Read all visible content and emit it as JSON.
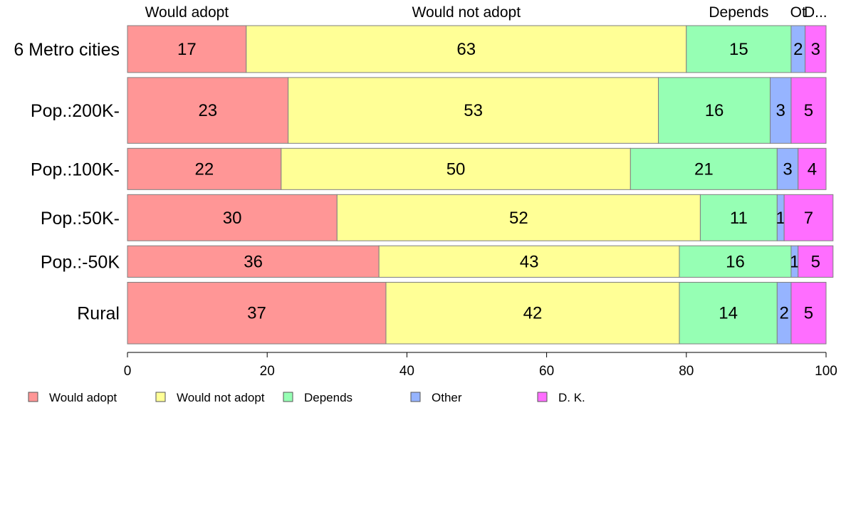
{
  "chart_data": {
    "type": "bar",
    "orientation": "horizontal",
    "stacked": true,
    "categories": [
      "6 Metro cities",
      "Pop.:200K-",
      "Pop.:100K-",
      "Pop.:50K-",
      "Pop.:-50K",
      "Rural"
    ],
    "series": [
      {
        "name": "Would adopt",
        "color": "#ff9696",
        "values": [
          17,
          23,
          22,
          30,
          36,
          37
        ]
      },
      {
        "name": "Would not adopt",
        "color": "#ffff96",
        "values": [
          63,
          53,
          50,
          52,
          43,
          42
        ]
      },
      {
        "name": "Depends",
        "color": "#96ffb4",
        "values": [
          15,
          16,
          21,
          11,
          16,
          14
        ]
      },
      {
        "name": "Other",
        "color": "#96b4ff",
        "values": [
          2,
          3,
          3,
          1,
          1,
          2
        ]
      },
      {
        "name": "D. K.",
        "color": "#ff6eff",
        "values": [
          3,
          5,
          4,
          7,
          5,
          5
        ]
      }
    ],
    "segment_labels": [
      [
        "17",
        "63",
        "15",
        "2",
        "3"
      ],
      [
        "23",
        "53",
        "16",
        "3",
        "5"
      ],
      [
        "22",
        "50",
        "21",
        "3",
        "4"
      ],
      [
        "30",
        "52",
        "11",
        "1",
        "7"
      ],
      [
        "36",
        "43",
        "16",
        "1",
        "5"
      ],
      [
        "37",
        "42",
        "14",
        "2",
        "5"
      ]
    ],
    "row_weights": [
      0.67,
      0.94,
      0.59,
      0.66,
      0.45,
      0.88
    ],
    "top_labels": [
      "Would adopt",
      "Would not adopt",
      "Depends",
      "Ot",
      "D..."
    ],
    "xlim": [
      0,
      100
    ],
    "xticks": [
      0,
      20,
      40,
      60,
      80,
      100
    ],
    "grid": false,
    "legend": "bottom"
  }
}
